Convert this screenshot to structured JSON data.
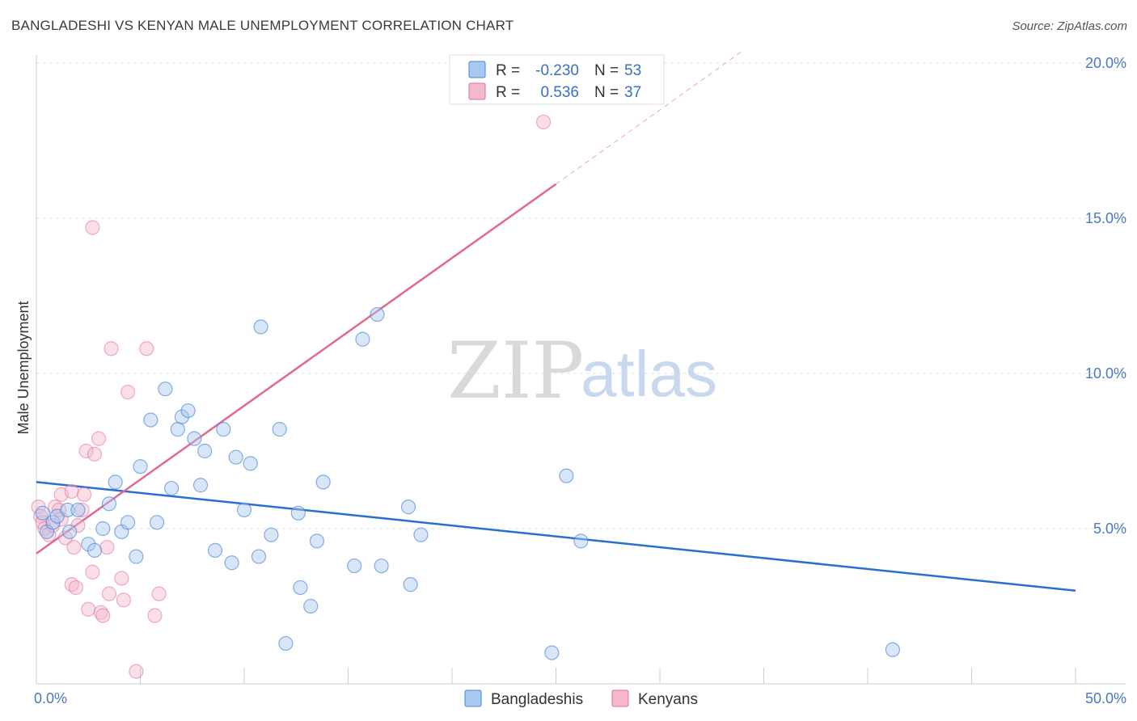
{
  "title": "BANGLADESHI VS KENYAN MALE UNEMPLOYMENT CORRELATION CHART",
  "source": "Source: ZipAtlas.com",
  "watermark": {
    "zip": "ZIP",
    "atlas": "atlas"
  },
  "colors": {
    "blue": "#4a86d8",
    "blue_fill": "#a8c8f0",
    "pink": "#e07098",
    "pink_fill": "#f4b8cc",
    "blue_line": "#2a6fcf",
    "pink_line": "#e06890"
  },
  "chart_data": {
    "type": "scatter",
    "title": "BANGLADESHI VS KENYAN MALE UNEMPLOYMENT CORRELATION CHART",
    "xlabel": "",
    "ylabel": "Male Unemployment",
    "xlim": [
      0,
      50
    ],
    "ylim": [
      0,
      20
    ],
    "x_tick_labels": [
      {
        "value": 0,
        "label": "0.0%"
      },
      {
        "value": 50,
        "label": "50.0%"
      }
    ],
    "y_tick_labels": [
      {
        "value": 5,
        "label": "5.0%"
      },
      {
        "value": 10,
        "label": "10.0%"
      },
      {
        "value": 15,
        "label": "15.0%"
      },
      {
        "value": 20,
        "label": "20.0%"
      }
    ],
    "grid": true,
    "legend": {
      "placement": "top-center",
      "entries": [
        {
          "series": "Bangladeshis",
          "r_label": "R =",
          "r_value": "-0.230",
          "n_label": "N =",
          "n_value": "53"
        },
        {
          "series": "Kenyans",
          "r_label": "R =",
          "r_value": "0.536",
          "n_label": "N =",
          "n_value": "37"
        }
      ]
    },
    "series": [
      {
        "name": "Bangladeshis",
        "trend": {
          "x": [
            0,
            50
          ],
          "y": [
            6.5,
            3.0
          ]
        },
        "points": [
          [
            0.3,
            5.5
          ],
          [
            0.5,
            4.9
          ],
          [
            0.8,
            5.2
          ],
          [
            1.0,
            5.4
          ],
          [
            1.5,
            5.6
          ],
          [
            1.6,
            4.9
          ],
          [
            2.0,
            5.6
          ],
          [
            2.5,
            4.5
          ],
          [
            2.8,
            4.3
          ],
          [
            3.2,
            5.0
          ],
          [
            3.5,
            5.8
          ],
          [
            3.8,
            6.5
          ],
          [
            4.1,
            4.9
          ],
          [
            4.4,
            5.2
          ],
          [
            4.8,
            4.1
          ],
          [
            5.0,
            7.0
          ],
          [
            5.5,
            8.5
          ],
          [
            5.8,
            5.2
          ],
          [
            6.2,
            9.5
          ],
          [
            6.5,
            6.3
          ],
          [
            6.8,
            8.2
          ],
          [
            7.0,
            8.6
          ],
          [
            7.3,
            8.8
          ],
          [
            7.6,
            7.9
          ],
          [
            7.9,
            6.4
          ],
          [
            8.1,
            7.5
          ],
          [
            8.6,
            4.3
          ],
          [
            9.0,
            8.2
          ],
          [
            9.4,
            3.9
          ],
          [
            9.6,
            7.3
          ],
          [
            10.0,
            5.6
          ],
          [
            10.3,
            7.1
          ],
          [
            10.7,
            4.1
          ],
          [
            10.8,
            11.5
          ],
          [
            11.3,
            4.8
          ],
          [
            11.7,
            8.2
          ],
          [
            12.6,
            5.5
          ],
          [
            12.7,
            3.1
          ],
          [
            13.2,
            2.5
          ],
          [
            13.5,
            4.6
          ],
          [
            13.8,
            6.5
          ],
          [
            15.3,
            3.8
          ],
          [
            12.0,
            1.3
          ],
          [
            15.7,
            11.1
          ],
          [
            16.4,
            11.9
          ],
          [
            16.6,
            3.8
          ],
          [
            17.9,
            5.7
          ],
          [
            18.0,
            3.2
          ],
          [
            18.5,
            4.8
          ],
          [
            24.8,
            1.0
          ],
          [
            25.5,
            6.7
          ],
          [
            26.2,
            4.6
          ],
          [
            41.2,
            1.1
          ]
        ]
      },
      {
        "name": "Kenyans",
        "trend": {
          "x": [
            0,
            25
          ],
          "y": [
            4.2,
            16.1
          ]
        },
        "trend_dashed": {
          "x": [
            25,
            34
          ],
          "y": [
            16.1,
            20.4
          ]
        },
        "points": [
          [
            0.1,
            5.7
          ],
          [
            0.2,
            5.4
          ],
          [
            0.3,
            5.2
          ],
          [
            0.4,
            5.0
          ],
          [
            0.6,
            4.8
          ],
          [
            0.8,
            5.1
          ],
          [
            0.9,
            5.7
          ],
          [
            1.1,
            5.6
          ],
          [
            1.2,
            5.3
          ],
          [
            1.2,
            6.1
          ],
          [
            1.4,
            4.7
          ],
          [
            1.7,
            6.2
          ],
          [
            1.7,
            3.2
          ],
          [
            1.8,
            4.4
          ],
          [
            1.9,
            3.1
          ],
          [
            2.0,
            5.1
          ],
          [
            2.2,
            5.6
          ],
          [
            2.3,
            6.1
          ],
          [
            2.4,
            7.5
          ],
          [
            2.5,
            2.4
          ],
          [
            2.7,
            14.7
          ],
          [
            2.7,
            3.6
          ],
          [
            2.8,
            7.4
          ],
          [
            3.0,
            7.9
          ],
          [
            3.1,
            2.3
          ],
          [
            3.2,
            2.2
          ],
          [
            3.4,
            4.4
          ],
          [
            3.5,
            2.9
          ],
          [
            3.6,
            10.8
          ],
          [
            4.1,
            3.4
          ],
          [
            4.2,
            2.7
          ],
          [
            4.4,
            9.4
          ],
          [
            4.8,
            0.4
          ],
          [
            5.3,
            10.8
          ],
          [
            5.7,
            2.2
          ],
          [
            5.9,
            2.9
          ],
          [
            24.4,
            18.1
          ]
        ]
      }
    ]
  },
  "bottom_legend": [
    {
      "label": "Bangladeshis"
    },
    {
      "label": "Kenyans"
    }
  ]
}
